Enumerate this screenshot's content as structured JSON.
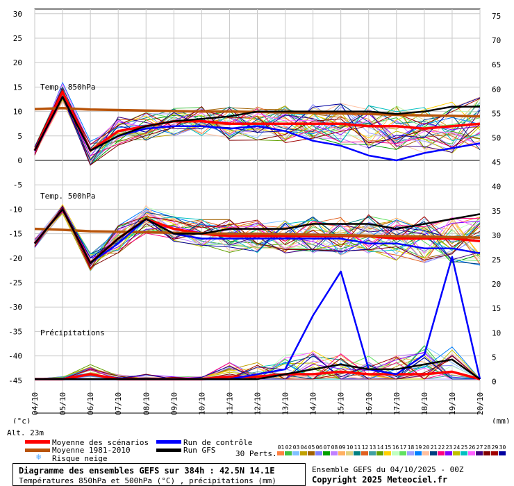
{
  "chart_data": [
    {
      "type": "line",
      "title": "Temp. 850hPa",
      "x": [
        "04/10",
        "05/10",
        "06/10",
        "07/10",
        "08/10",
        "09/10",
        "10/10",
        "11/10",
        "12/10",
        "13/10",
        "14/10",
        "15/10",
        "16/10",
        "17/10",
        "18/10",
        "19/10",
        "20/10"
      ],
      "ylabel": "°c",
      "ylim": [
        0,
        30
      ],
      "series": [
        {
          "name": "Moyenne des scénarios",
          "color": "#ff0000",
          "values": [
            2,
            14,
            2,
            6,
            7,
            8,
            8,
            7.5,
            7.5,
            7.5,
            7.5,
            7.5,
            7,
            7,
            6.5,
            7,
            7.5
          ]
        },
        {
          "name": "Moyenne 1981-2010",
          "color": "#b8540a",
          "values": [
            10.5,
            10.7,
            10.4,
            10.3,
            10.2,
            10.1,
            10,
            10,
            9.9,
            9.8,
            9.7,
            9.6,
            9.5,
            9.3,
            9.2,
            9.1,
            9
          ]
        },
        {
          "name": "Run de contrôle",
          "color": "#0000ff",
          "values": [
            2,
            13,
            2,
            5,
            6.5,
            7,
            7,
            6.5,
            7,
            6,
            4,
            3,
            1,
            0,
            1.5,
            2.5,
            3.5
          ]
        },
        {
          "name": "Run GFS",
          "color": "#000000",
          "values": [
            2,
            13,
            2,
            5,
            7,
            8,
            8.5,
            9,
            10,
            10,
            10,
            10,
            10,
            9.5,
            10,
            11,
            11
          ]
        }
      ]
    },
    {
      "type": "line",
      "title": "Temp. 500hPa",
      "x": [
        "04/10",
        "05/10",
        "06/10",
        "07/10",
        "08/10",
        "09/10",
        "10/10",
        "11/10",
        "12/10",
        "13/10",
        "14/10",
        "15/10",
        "16/10",
        "17/10",
        "18/10",
        "19/10",
        "20/10"
      ],
      "ylim": [
        -25,
        -5
      ],
      "series": [
        {
          "name": "Moyenne des scénarios",
          "color": "#ff0000",
          "values": [
            -17,
            -10,
            -21,
            -16,
            -12,
            -14,
            -15,
            -15.5,
            -15.5,
            -15.5,
            -15.5,
            -15.5,
            -15.5,
            -16,
            -16,
            -16,
            -16.5
          ]
        },
        {
          "name": "Moyenne 1981-2010",
          "color": "#b8540a",
          "values": [
            -14,
            -14.2,
            -14.5,
            -14.6,
            -14.7,
            -14.8,
            -14.9,
            -15,
            -15,
            -15.1,
            -15.2,
            -15.3,
            -15.4,
            -15.5,
            -15.6,
            -15.7,
            -15.8
          ]
        },
        {
          "name": "Run de contrôle",
          "color": "#0000ff",
          "values": [
            -17,
            -10,
            -21,
            -17,
            -12,
            -15,
            -16,
            -16,
            -16,
            -16,
            -16,
            -16,
            -17,
            -17,
            -18,
            -18,
            -19
          ]
        },
        {
          "name": "Run GFS",
          "color": "#000000",
          "values": [
            -17,
            -10,
            -21,
            -16,
            -12,
            -15,
            -15,
            -14,
            -14,
            -14,
            -13,
            -13,
            -13,
            -14,
            -13,
            -12,
            -11
          ]
        }
      ]
    },
    {
      "type": "line",
      "title": "Précipitations",
      "x": [
        "04/10",
        "05/10",
        "06/10",
        "07/10",
        "08/10",
        "09/10",
        "10/10",
        "11/10",
        "12/10",
        "13/10",
        "14/10",
        "15/10",
        "16/10",
        "17/10",
        "18/10",
        "19/10",
        "20/10"
      ],
      "ylabel": "mm",
      "ylim": [
        0,
        40
      ],
      "series": [
        {
          "name": "Moyenne des scénarios",
          "color": "#ff0000",
          "values": [
            0,
            0,
            1,
            0,
            0,
            0,
            0,
            0.5,
            0.5,
            1,
            1,
            1.5,
            1,
            1,
            1,
            1.5,
            0
          ]
        },
        {
          "name": "Run de contrôle",
          "color": "#0000ff",
          "values": [
            0,
            0,
            0,
            0,
            0,
            0,
            0,
            0,
            1,
            2,
            13,
            22,
            2,
            1,
            5,
            25,
            0
          ]
        },
        {
          "name": "Run GFS",
          "color": "#000000",
          "values": [
            0,
            0,
            0,
            0,
            0,
            0,
            0,
            0,
            0,
            1,
            2,
            3,
            2,
            2,
            3,
            4,
            0
          ]
        }
      ]
    }
  ],
  "axes": {
    "left_ticks": [
      "30",
      "25",
      "20",
      "15",
      "10",
      "5",
      "0",
      "-5",
      "-10",
      "-15",
      "-20",
      "-25",
      "-30",
      "-35",
      "-40",
      "-45"
    ],
    "right_ticks": [
      "75",
      "70",
      "65",
      "60",
      "55",
      "50",
      "45",
      "40",
      "35",
      "30",
      "25",
      "20",
      "15",
      "10",
      "5",
      "0"
    ],
    "left_unit": "(°c)",
    "right_unit": "(mm)",
    "altitude": "Alt. 23m"
  },
  "legend": {
    "mean": "Moyenne des scénarios",
    "climo": "Moyenne 1981-2010",
    "snow": "Risque neige",
    "control": "Run de contrôle",
    "gfs": "Run GFS",
    "perts": "30 Perts.",
    "colors": {
      "mean": "#ff0000",
      "climo": "#b8540a",
      "control": "#0000ff",
      "gfs": "#000000",
      "snow": "#55aaff"
    }
  },
  "perturbations": {
    "labels": [
      "01",
      "02",
      "03",
      "04",
      "05",
      "06",
      "07",
      "08",
      "09",
      "10",
      "11",
      "12",
      "13",
      "14",
      "15",
      "16",
      "17",
      "18",
      "19",
      "20",
      "21",
      "22",
      "23",
      "24",
      "25",
      "26",
      "27",
      "28",
      "29",
      "30"
    ],
    "colors": [
      "#ff8040",
      "#40c040",
      "#80c0ff",
      "#c0a000",
      "#a06000",
      "#8080ff",
      "#00a000",
      "#c080ff",
      "#ffb060",
      "#e0d080",
      "#008080",
      "#e06020",
      "#40a0a0",
      "#60a000",
      "#ffd000",
      "#c0ffc0",
      "#60e060",
      "#a0a0ff",
      "#0080ff",
      "#ffc0a0",
      "#004080",
      "#ff0080",
      "#8000ff",
      "#c0c000",
      "#00c0c0",
      "#ff60ff",
      "#400080",
      "#800000",
      "#a00000",
      "#0000a0"
    ]
  },
  "info": {
    "line1": "Diagramme des ensembles GEFS sur 384h : 42.5N 14.1E",
    "line2": "Températures 850hPa et 500hPa (°C) , précipitations (mm)",
    "run": "Ensemble GEFS du 04/10/2025 - 00Z",
    "copyright": "Copyright 2025 Meteociel.fr"
  }
}
